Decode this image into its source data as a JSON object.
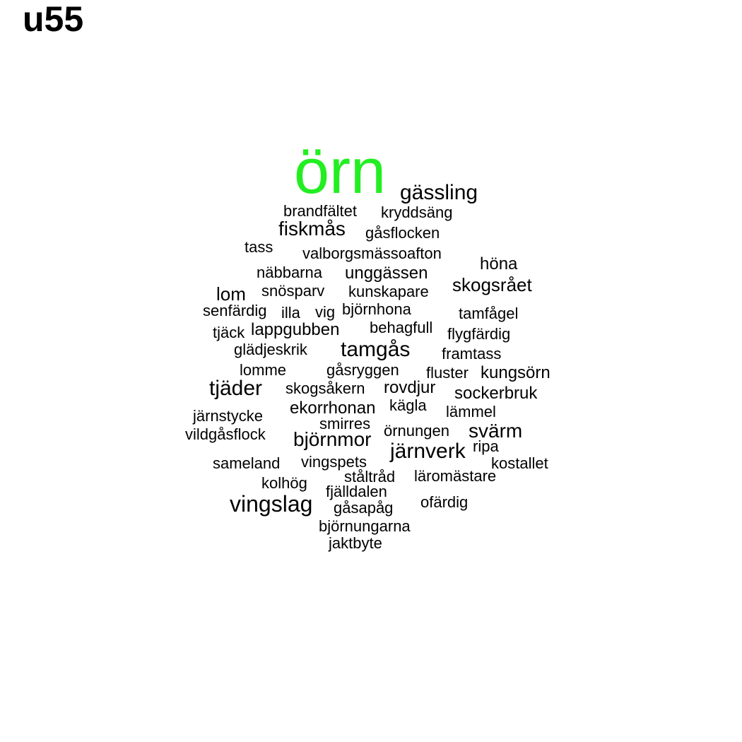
{
  "title": "u55",
  "colors": {
    "highlight": "#22ee22",
    "default": "#000000",
    "background": "#ffffff"
  },
  "words": [
    {
      "text": "örn",
      "highlight": true
    },
    {
      "text": "gässling"
    },
    {
      "text": "brandfältet"
    },
    {
      "text": "kryddsäng"
    },
    {
      "text": "fiskmås"
    },
    {
      "text": "gåsflocken"
    },
    {
      "text": "tass"
    },
    {
      "text": "valborgsmässoafton"
    },
    {
      "text": "höna"
    },
    {
      "text": "näbbarna"
    },
    {
      "text": "unggässen"
    },
    {
      "text": "skogsrået"
    },
    {
      "text": "lom"
    },
    {
      "text": "snösparv"
    },
    {
      "text": "kunskapare"
    },
    {
      "text": "senfärdig"
    },
    {
      "text": "illa"
    },
    {
      "text": "vig"
    },
    {
      "text": "björnhona"
    },
    {
      "text": "tamfågel"
    },
    {
      "text": "tjäck"
    },
    {
      "text": "lappgubben"
    },
    {
      "text": "behagfull"
    },
    {
      "text": "flygfärdig"
    },
    {
      "text": "glädjeskrik"
    },
    {
      "text": "tamgås"
    },
    {
      "text": "framtass"
    },
    {
      "text": "lomme"
    },
    {
      "text": "gåsryggen"
    },
    {
      "text": "fluster"
    },
    {
      "text": "kungsörn"
    },
    {
      "text": "tjäder"
    },
    {
      "text": "skogsåkern"
    },
    {
      "text": "rovdjur"
    },
    {
      "text": "sockerbruk"
    },
    {
      "text": "ekorrhonan"
    },
    {
      "text": "kägla"
    },
    {
      "text": "järnstycke"
    },
    {
      "text": "lämmel"
    },
    {
      "text": "smirres"
    },
    {
      "text": "vildgåsflock"
    },
    {
      "text": "örnungen"
    },
    {
      "text": "svärm"
    },
    {
      "text": "björnmor"
    },
    {
      "text": "järnverk"
    },
    {
      "text": "ripa"
    },
    {
      "text": "sameland"
    },
    {
      "text": "vingspets"
    },
    {
      "text": "kostallet"
    },
    {
      "text": "ståltråd"
    },
    {
      "text": "läromästare"
    },
    {
      "text": "kolhög"
    },
    {
      "text": "fjälldalen"
    },
    {
      "text": "vingslag"
    },
    {
      "text": "gåsapåg"
    },
    {
      "text": "ofärdig"
    },
    {
      "text": "björnungarna"
    },
    {
      "text": "jaktbyte"
    }
  ]
}
